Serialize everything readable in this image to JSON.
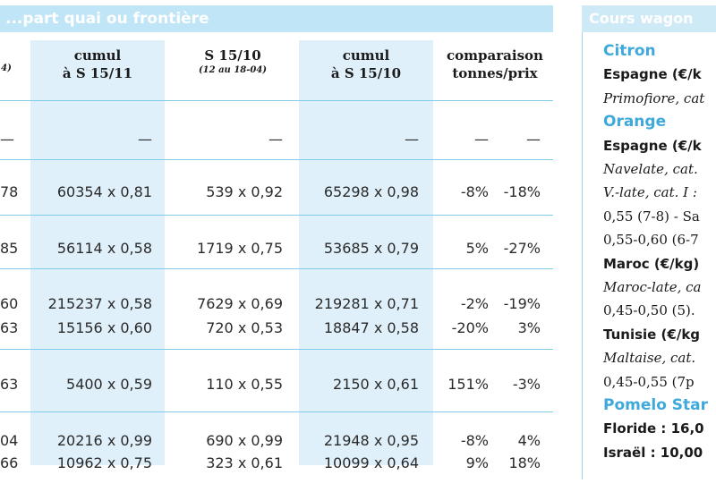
{
  "banner": "...part quai ou frontière",
  "headers": {
    "h2": [
      "cumul",
      "à S 15/11"
    ],
    "h3": [
      "S 15/10",
      "(12 au 18-04)"
    ],
    "h4": [
      "cumul",
      "à S 15/10"
    ],
    "h5": [
      "comparaison",
      "tonnes/prix"
    ],
    "h1_small": "4)"
  },
  "rows": [
    {
      "c1": "—",
      "c2": "—",
      "c3": "—",
      "c4": "—",
      "p1": "—",
      "p2": "—"
    },
    {
      "c1": "78",
      "c2": "60354 x 0,81",
      "c3": "539 x 0,92",
      "c4": "65298 x 0,98",
      "p1": "-8%",
      "p2": "-18%"
    },
    {
      "c1": "85",
      "c2": "56114 x 0,58",
      "c3": "1719 x 0,75",
      "c4": "53685 x 0,79",
      "p1": "5%",
      "p2": "-27%"
    },
    {
      "c1": "60",
      "c2": "215237 x 0,58",
      "c3": "7629 x 0,69",
      "c4": "219281 x 0,71",
      "p1": "-2%",
      "p2": "-19%"
    },
    {
      "c1": "63",
      "c2": "15156 x 0,60",
      "c3": "720 x 0,53",
      "c4": "18847 x 0,58",
      "p1": "-20%",
      "p2": "3%"
    },
    {
      "c1": "63",
      "c2": "5400 x 0,59",
      "c3": "110 x 0,55",
      "c4": "2150 x 0,61",
      "p1": "151%",
      "p2": "-3%"
    },
    {
      "c1": "04",
      "c2": "20216 x 0,99",
      "c3": "690 x 0,99",
      "c4": "21948 x 0,95",
      "p1": "-8%",
      "p2": "4%"
    },
    {
      "c1": "66",
      "c2": "10962 x 0,75",
      "c3": "323 x 0,61",
      "c4": "10099 x 0,64",
      "p1": "9%",
      "p2": "18%"
    }
  ],
  "sidebar": {
    "title": "Cours wagon",
    "lines": [
      {
        "cls": "sh",
        "text": "Citron"
      },
      {
        "cls": "sb",
        "text": "Espagne (€/k"
      },
      {
        "cls": "si",
        "text": "Primofiore, cat"
      },
      {
        "cls": "sh",
        "text": "Orange"
      },
      {
        "cls": "sb",
        "text": "Espagne (€/k"
      },
      {
        "cls": "si",
        "text": "Navelate, cat."
      },
      {
        "cls": "si",
        "text": "V.-late, cat. I :"
      },
      {
        "cls": "",
        "text": "0,55 (7-8) - Sa"
      },
      {
        "cls": "",
        "text": "0,55-0,60 (6-7"
      },
      {
        "cls": "sb",
        "text": "Maroc (€/kg)"
      },
      {
        "cls": "si",
        "text": "Maroc-late, ca"
      },
      {
        "cls": "",
        "text": "0,45-0,50 (5)."
      },
      {
        "cls": "sb",
        "text": "Tunisie (€/kg"
      },
      {
        "cls": "si",
        "text": "Maltaise, cat."
      },
      {
        "cls": "",
        "text": "0,45-0,55 (7p"
      },
      {
        "cls": "sh",
        "text": "Pomelo Star"
      },
      {
        "cls": "sb",
        "text": "Floride : 16,0"
      },
      {
        "cls": "sb",
        "text": "Israël : 10,00"
      }
    ]
  }
}
